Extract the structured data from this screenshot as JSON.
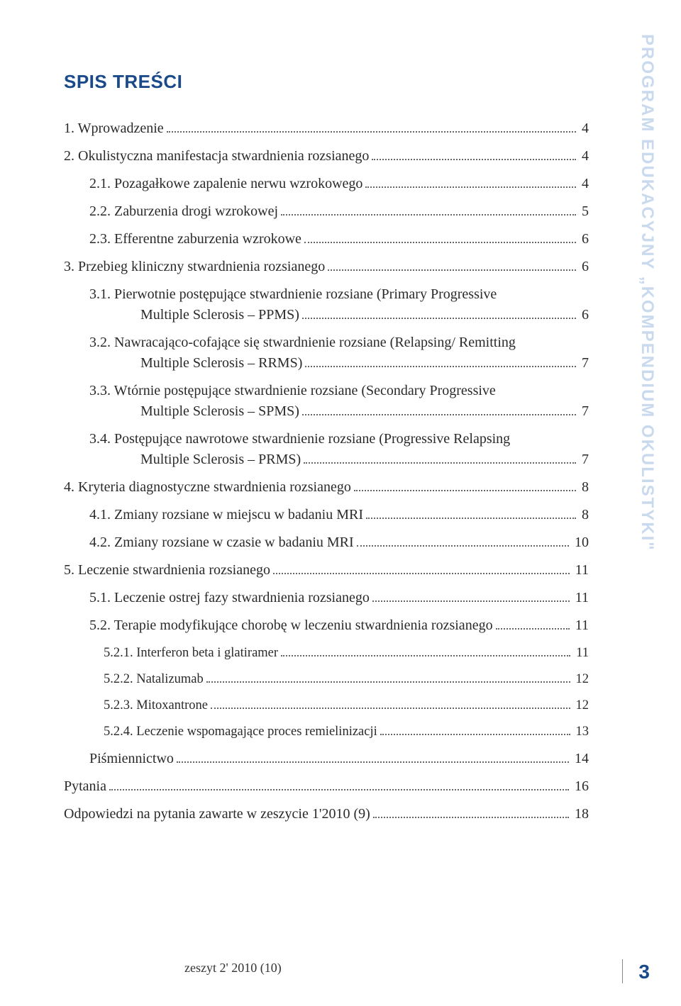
{
  "title": "SPIS TREŚCI",
  "side_label": "PROGRAM EDUKACYJNY „KOMPENDIUM OKULISTYKI\"",
  "colors": {
    "title": "#1a4a8a",
    "side": "#c9d9ee",
    "text": "#2a2a2a",
    "page_num": "#1a4a8a",
    "background": "#ffffff"
  },
  "toc": [
    {
      "indent": 0,
      "label": "1.  Wprowadzenie",
      "page": "4"
    },
    {
      "indent": 0,
      "label": "2.  Okulistyczna manifestacja stwardnienia rozsianego",
      "page": "4"
    },
    {
      "indent": 1,
      "label": "2.1. Pozagałkowe zapalenie nerwu wzrokowego",
      "page": "4"
    },
    {
      "indent": 1,
      "label": "2.2. Zaburzenia drogi wzrokowej",
      "page": "5"
    },
    {
      "indent": 1,
      "label": "2.3. Efferentne zaburzenia wzrokowe",
      "page": "6"
    },
    {
      "indent": 0,
      "label": "3.  Przebieg kliniczny stwardnienia rozsianego",
      "page": "6"
    },
    {
      "indent": 1,
      "multi": true,
      "first": "3.1. Pierwotnie postępujące stwardnienie rozsiane (Primary Progressive",
      "last": "Multiple Sclerosis – PPMS)",
      "page": "6"
    },
    {
      "indent": 1,
      "multi": true,
      "first": "3.2. Nawracająco-cofające się stwardnienie rozsiane (Relapsing/ Remitting",
      "last": "Multiple Sclerosis – RRMS)",
      "page": "7"
    },
    {
      "indent": 1,
      "multi": true,
      "first": "3.3. Wtórnie postępujące stwardnienie rozsiane (Secondary Progressive",
      "last": "Multiple Sclerosis – SPMS)",
      "page": "7"
    },
    {
      "indent": 1,
      "multi": true,
      "first": "3.4. Postępujące nawrotowe stwardnienie rozsiane (Progressive Relapsing",
      "last": "Multiple Sclerosis – PRMS)",
      "page": "7"
    },
    {
      "indent": 0,
      "label": "4.  Kryteria diagnostyczne stwardnienia rozsianego",
      "page": "8"
    },
    {
      "indent": 1,
      "label": "4.1. Zmiany rozsiane w miejscu w badaniu MRI",
      "page": "8"
    },
    {
      "indent": 1,
      "label": "4.2. Zmiany rozsiane w czasie w badaniu MRI",
      "page": "10"
    },
    {
      "indent": 0,
      "label": "5.  Leczenie stwardnienia rozsianego",
      "page": "11"
    },
    {
      "indent": 1,
      "label": "5.1. Leczenie ostrej fazy stwardnienia rozsianego",
      "page": "11"
    },
    {
      "indent": 1,
      "label": "5.2. Terapie modyfikujące chorobę w leczeniu stwardnienia rozsianego",
      "page": "11"
    },
    {
      "indent": 2,
      "small": true,
      "label": "5.2.1. Interferon beta i glatiramer",
      "page": "11"
    },
    {
      "indent": 2,
      "small": true,
      "label": "5.2.2. Natalizumab",
      "page": "12"
    },
    {
      "indent": 2,
      "small": true,
      "label": "5.2.3. Mitoxantrone",
      "page": "12"
    },
    {
      "indent": 2,
      "small": true,
      "label": "5.2.4. Leczenie wspomagające proces remielinizacji",
      "page": "13"
    },
    {
      "indent": 1,
      "label": "Piśmiennictwo",
      "page": "14"
    },
    {
      "indent": 0,
      "label": "Pytania",
      "page": "16"
    },
    {
      "indent": 0,
      "label": "Odpowiedzi na pytania zawarte w zeszycie 1'2010 (9)",
      "page": "18"
    }
  ],
  "footer": {
    "text": "zeszyt 2' 2010 (10)",
    "page": "3"
  }
}
